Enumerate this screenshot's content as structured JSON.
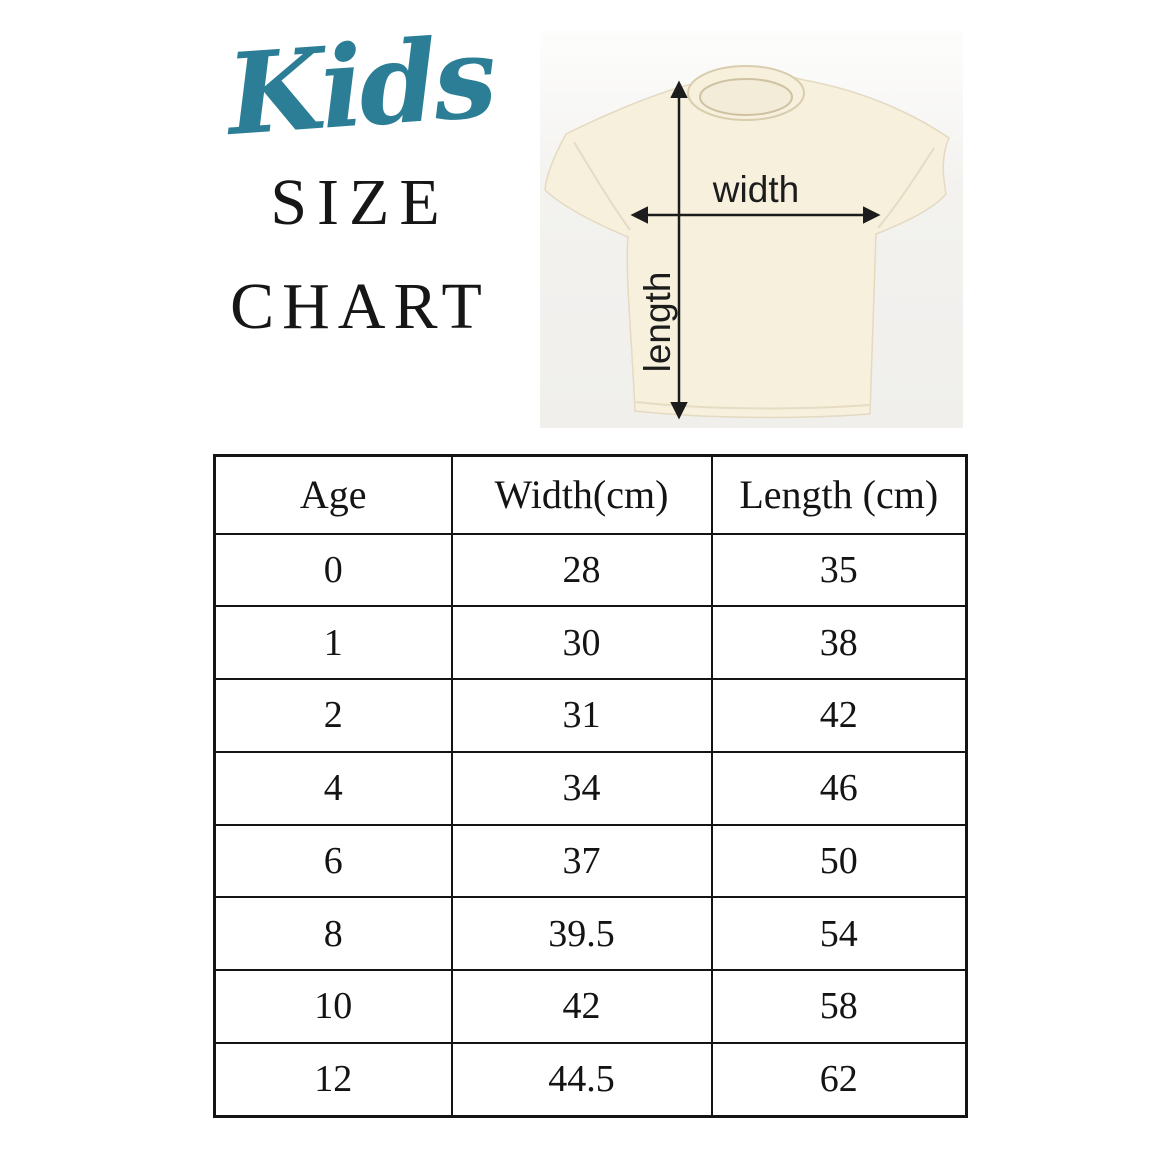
{
  "page_title": "Kids Size Chart",
  "title": {
    "script": "Kids",
    "line1": "SIZE",
    "line2": "CHART",
    "script_color": "#2b7e95",
    "text_color": "#161616"
  },
  "diagram": {
    "width_label": "width",
    "length_label": "length",
    "shirt_color": "#f7f0dd",
    "photo_background": "#f3f2ef",
    "arrow_color": "#1c1c1c"
  },
  "chart_data": {
    "type": "table",
    "title": "Kids Size Chart",
    "columns": [
      "Age",
      "Width(cm)",
      "Length (cm)"
    ],
    "rows": [
      [
        "0",
        "28",
        "35"
      ],
      [
        "1",
        "30",
        "38"
      ],
      [
        "2",
        "31",
        "42"
      ],
      [
        "4",
        "34",
        "46"
      ],
      [
        "6",
        "37",
        "50"
      ],
      [
        "8",
        "39.5",
        "54"
      ],
      [
        "10",
        "42",
        "58"
      ],
      [
        "12",
        "44.5",
        "62"
      ]
    ]
  }
}
